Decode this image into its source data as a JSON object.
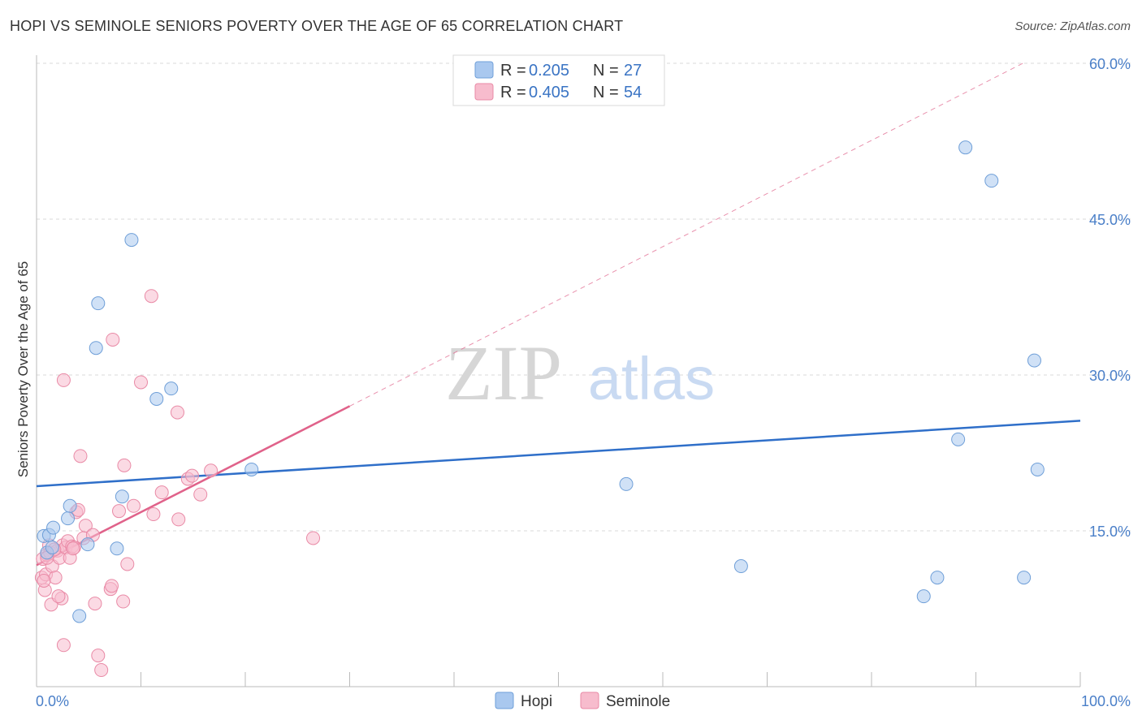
{
  "title": "HOPI VS SEMINOLE SENIORS POVERTY OVER THE AGE OF 65 CORRELATION CHART",
  "source": "Source: ZipAtlas.com",
  "watermark": {
    "zip": "ZIP",
    "atlas": "atlas"
  },
  "colors": {
    "hopi_fill": "#a9c8ef",
    "hopi_stroke": "#6f9fd8",
    "hopi_line": "#2f6fc9",
    "seminole_fill": "#f7bccd",
    "seminole_stroke": "#e98aa6",
    "seminole_line": "#e0628a",
    "grid": "#d9d9d9",
    "tick_text": "#4a7fc8"
  },
  "legend": {
    "rows": [
      {
        "r_label": "R =",
        "r_value": "0.205",
        "n_label": "N =",
        "n_value": "27"
      },
      {
        "r_label": "R =",
        "r_value": "0.405",
        "n_label": "N =",
        "n_value": "54"
      }
    ]
  },
  "bottom_legend": [
    "Hopi",
    "Seminole"
  ],
  "chart_data": {
    "type": "scatter",
    "title": "HOPI VS SEMINOLE SENIORS POVERTY OVER THE AGE OF 65 CORRELATION CHART",
    "xlabel": "",
    "ylabel": "Seniors Poverty Over the Age of 65",
    "xlim": [
      0,
      100
    ],
    "ylim": [
      0,
      60
    ],
    "x_tick_labels": [
      "0.0%",
      "100.0%"
    ],
    "y_ticks": [
      15,
      30,
      45,
      60
    ],
    "y_tick_labels": [
      "15.0%",
      "30.0%",
      "45.0%",
      "60.0%"
    ],
    "grid": true,
    "series": [
      {
        "name": "Hopi",
        "r": 0.205,
        "n": 27,
        "trend": {
          "x0": 0,
          "y0": 19.3,
          "x1": 100,
          "y1": 25.6
        },
        "points": [
          [
            0.7,
            14.5
          ],
          [
            1.0,
            12.9
          ],
          [
            1.2,
            14.6
          ],
          [
            1.5,
            13.4
          ],
          [
            1.6,
            15.3
          ],
          [
            3.0,
            16.2
          ],
          [
            3.2,
            17.4
          ],
          [
            4.1,
            6.8
          ],
          [
            4.9,
            13.7
          ],
          [
            5.7,
            32.6
          ],
          [
            5.9,
            36.9
          ],
          [
            7.7,
            13.3
          ],
          [
            8.2,
            18.3
          ],
          [
            9.1,
            43.0
          ],
          [
            11.5,
            27.7
          ],
          [
            12.9,
            28.7
          ],
          [
            20.6,
            20.9
          ],
          [
            56.5,
            19.5
          ],
          [
            67.5,
            11.6
          ],
          [
            85.0,
            8.7
          ],
          [
            86.3,
            10.5
          ],
          [
            88.3,
            23.8
          ],
          [
            89.0,
            51.9
          ],
          [
            91.5,
            48.7
          ],
          [
            94.6,
            10.5
          ],
          [
            95.6,
            31.4
          ],
          [
            95.9,
            20.9
          ]
        ]
      },
      {
        "name": "Seminole",
        "r": 0.405,
        "n": 54,
        "trend": {
          "x0": 0,
          "y0": 11.7,
          "x1": 30,
          "y1": 27.0
        },
        "trend_ext": {
          "x0": 30,
          "y0": 27.0,
          "x1": 94.5,
          "y1": 60.0
        },
        "points": [
          [
            0.5,
            10.5
          ],
          [
            0.6,
            12.3
          ],
          [
            0.8,
            9.3
          ],
          [
            0.9,
            10.8
          ],
          [
            1.0,
            12.7
          ],
          [
            1.2,
            13.6
          ],
          [
            1.3,
            12.9
          ],
          [
            1.4,
            7.9
          ],
          [
            1.5,
            11.6
          ],
          [
            1.8,
            10.5
          ],
          [
            2.0,
            13.1
          ],
          [
            2.2,
            12.4
          ],
          [
            2.5,
            13.6
          ],
          [
            2.6,
            4.0
          ],
          [
            2.6,
            29.5
          ],
          [
            2.8,
            13.4
          ],
          [
            3.0,
            14.0
          ],
          [
            3.2,
            12.4
          ],
          [
            3.4,
            13.5
          ],
          [
            3.6,
            13.4
          ],
          [
            3.8,
            16.8
          ],
          [
            4.0,
            17.0
          ],
          [
            4.2,
            22.2
          ],
          [
            4.5,
            14.3
          ],
          [
            4.7,
            15.5
          ],
          [
            5.4,
            14.6
          ],
          [
            5.6,
            8.0
          ],
          [
            5.9,
            3.0
          ],
          [
            6.2,
            1.6
          ],
          [
            7.1,
            9.4
          ],
          [
            7.2,
            9.7
          ],
          [
            7.3,
            33.4
          ],
          [
            7.9,
            16.9
          ],
          [
            8.3,
            8.2
          ],
          [
            8.4,
            21.3
          ],
          [
            8.7,
            11.8
          ],
          [
            9.3,
            17.4
          ],
          [
            10.0,
            29.3
          ],
          [
            11.2,
            16.6
          ],
          [
            11.0,
            37.6
          ],
          [
            12.0,
            18.7
          ],
          [
            13.5,
            26.4
          ],
          [
            13.6,
            16.1
          ],
          [
            14.5,
            20.0
          ],
          [
            14.9,
            20.3
          ],
          [
            15.7,
            18.5
          ],
          [
            16.7,
            20.8
          ],
          [
            26.5,
            14.3
          ],
          [
            1.0,
            12.4
          ],
          [
            2.4,
            8.5
          ],
          [
            1.7,
            13.2
          ],
          [
            3.5,
            13.3
          ],
          [
            0.7,
            10.2
          ],
          [
            2.1,
            8.7
          ]
        ]
      }
    ]
  }
}
